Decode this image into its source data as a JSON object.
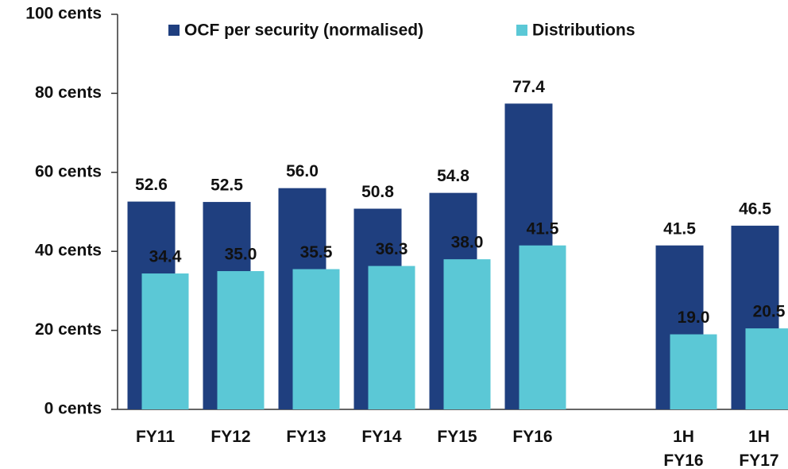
{
  "chart_data": {
    "type": "bar",
    "categories": [
      "FY11",
      "FY12",
      "FY13",
      "FY14",
      "FY15",
      "FY16",
      null,
      "1H FY16",
      "1H FY17"
    ],
    "series": [
      {
        "name": "OCF per security (normalised)",
        "color": "#1f3f7f",
        "values": [
          52.6,
          52.5,
          56.0,
          50.8,
          54.8,
          77.4,
          null,
          41.5,
          46.5
        ],
        "value_labels": [
          "52.6",
          "52.5",
          "56.0",
          "50.8",
          "54.8",
          "77.4",
          null,
          "41.5",
          "46.5"
        ]
      },
      {
        "name": "Distributions",
        "color": "#5bc8d6",
        "values": [
          34.4,
          35.0,
          35.5,
          36.3,
          38.0,
          41.5,
          null,
          19.0,
          20.5
        ],
        "value_labels": [
          "34.4",
          "35.0",
          "35.5",
          "36.3",
          "38.0",
          "41.5",
          null,
          "19.0",
          "20.5"
        ]
      }
    ],
    "ylim": [
      0,
      100
    ],
    "yticks": [
      {
        "value": 0,
        "label": "0 cents"
      },
      {
        "value": 20,
        "label": "20 cents"
      },
      {
        "value": 40,
        "label": "40 cents"
      },
      {
        "value": 60,
        "label": "60 cents"
      },
      {
        "value": 80,
        "label": "80 cents"
      },
      {
        "value": 100,
        "label": "100 cents"
      }
    ],
    "legend": "top"
  }
}
